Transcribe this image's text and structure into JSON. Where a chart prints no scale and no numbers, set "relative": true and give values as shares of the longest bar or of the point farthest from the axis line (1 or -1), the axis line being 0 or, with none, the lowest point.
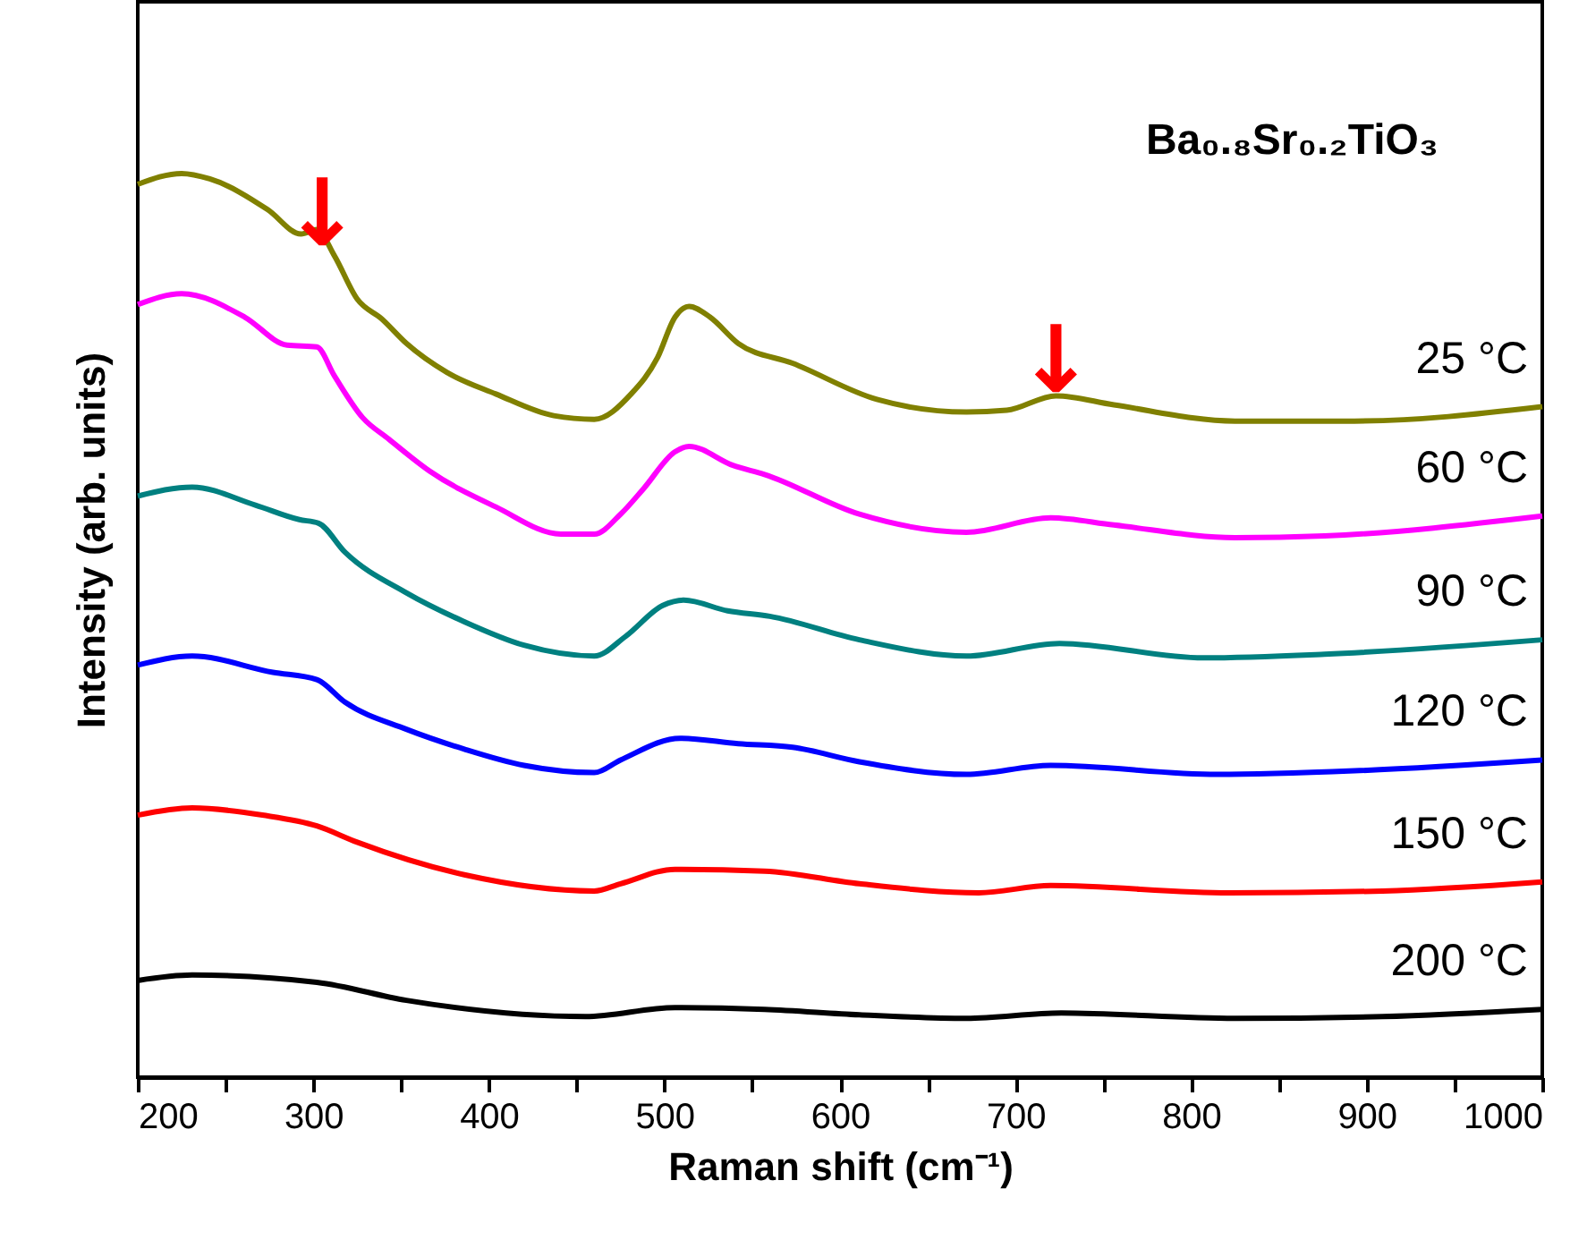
{
  "chart_data": {
    "type": "line",
    "relative": true,
    "xlabel": "Raman shift (cm⁻¹)",
    "ylabel": "Intensity (arb. units)",
    "xlim": [
      200,
      1000
    ],
    "xticks": [
      200,
      {
        "value": 250,
        "label": null
      },
      300,
      {
        "value": 350,
        "label": null
      },
      400,
      {
        "value": 450,
        "label": null
      },
      500,
      {
        "value": 550,
        "label": null
      },
      600,
      {
        "value": 650,
        "label": null
      },
      700,
      {
        "value": 750,
        "label": null
      },
      800,
      {
        "value": 850,
        "label": null
      },
      900,
      {
        "value": 950,
        "label": null
      },
      1000
    ],
    "grid": false,
    "marker": "none",
    "line_style": "solid",
    "annotations": [
      "Ba₀.₈Sr₀.₂TiO₃",
      {
        "text": "↓",
        "x": 305,
        "y": 0.929
      },
      {
        "text": "↓",
        "x": 723,
        "y": 0.766
      }
    ],
    "series": [
      {
        "name": "25 °C",
        "color": "#808000",
        "x": [
          200,
          225,
          241,
          274,
          293,
          302,
          312,
          325,
          339,
          353,
          376,
          404,
          437,
          460,
          481,
          496,
          506,
          514,
          526,
          542,
          573,
          621,
          672,
          695,
          723,
          756,
          825,
          893,
          1000
        ],
        "values": [
          0.988,
          1.0,
          0.994,
          0.96,
          0.933,
          0.938,
          0.909,
          0.861,
          0.839,
          0.812,
          0.78,
          0.756,
          0.732,
          0.728,
          0.756,
          0.796,
          0.841,
          0.853,
          0.841,
          0.812,
          0.79,
          0.75,
          0.736,
          0.738,
          0.754,
          0.744,
          0.726,
          0.726,
          0.742
        ]
      },
      {
        "name": "60 °C",
        "color": "#ff00ff",
        "x": [
          200,
          225,
          261,
          285,
          302,
          312,
          328,
          343,
          366,
          404,
          441,
          460,
          475,
          488,
          506,
          514,
          539,
          557,
          611,
          672,
          720,
          756,
          825,
          876,
          1000
        ],
        "values": [
          0.855,
          0.867,
          0.841,
          0.81,
          0.808,
          0.776,
          0.73,
          0.706,
          0.671,
          0.631,
          0.601,
          0.601,
          0.623,
          0.651,
          0.692,
          0.698,
          0.677,
          0.667,
          0.623,
          0.603,
          0.619,
          0.611,
          0.597,
          0.599,
          0.621
        ]
      },
      {
        "name": "90 °C",
        "color": "#008080",
        "x": [
          200,
          231,
          267,
          292,
          303,
          318,
          353,
          386,
          420,
          460,
          478,
          499,
          511,
          536,
          560,
          611,
          672,
          725,
          807,
          876,
          1000
        ],
        "values": [
          0.643,
          0.653,
          0.633,
          0.617,
          0.613,
          0.581,
          0.536,
          0.504,
          0.478,
          0.466,
          0.488,
          0.522,
          0.528,
          0.516,
          0.51,
          0.484,
          0.466,
          0.48,
          0.464,
          0.468,
          0.484
        ]
      },
      {
        "name": "120 °C",
        "color": "#0000ff",
        "x": [
          200,
          231,
          277,
          302,
          318,
          353,
          386,
          420,
          460,
          475,
          509,
          542,
          573,
          611,
          672,
          720,
          815,
          893,
          1000
        ],
        "values": [
          0.456,
          0.466,
          0.448,
          0.44,
          0.415,
          0.385,
          0.363,
          0.345,
          0.337,
          0.351,
          0.375,
          0.369,
          0.365,
          0.349,
          0.335,
          0.345,
          0.335,
          0.339,
          0.351
        ]
      },
      {
        "name": "150 °C",
        "color": "#ff0000",
        "x": [
          200,
          231,
          271,
          302,
          325,
          386,
          460,
          475,
          506,
          557,
          611,
          679,
          720,
          822,
          909,
          1000
        ],
        "values": [
          0.29,
          0.298,
          0.29,
          0.278,
          0.26,
          0.224,
          0.206,
          0.214,
          0.23,
          0.228,
          0.214,
          0.204,
          0.212,
          0.204,
          0.206,
          0.216
        ]
      },
      {
        "name": "200 °C",
        "color": "#000000",
        "x": [
          200,
          231,
          302,
          353,
          455,
          506,
          557,
          611,
          672,
          726,
          825,
          909,
          1000
        ],
        "values": [
          0.107,
          0.113,
          0.105,
          0.085,
          0.067,
          0.077,
          0.075,
          0.069,
          0.065,
          0.071,
          0.065,
          0.067,
          0.075
        ]
      }
    ]
  }
}
